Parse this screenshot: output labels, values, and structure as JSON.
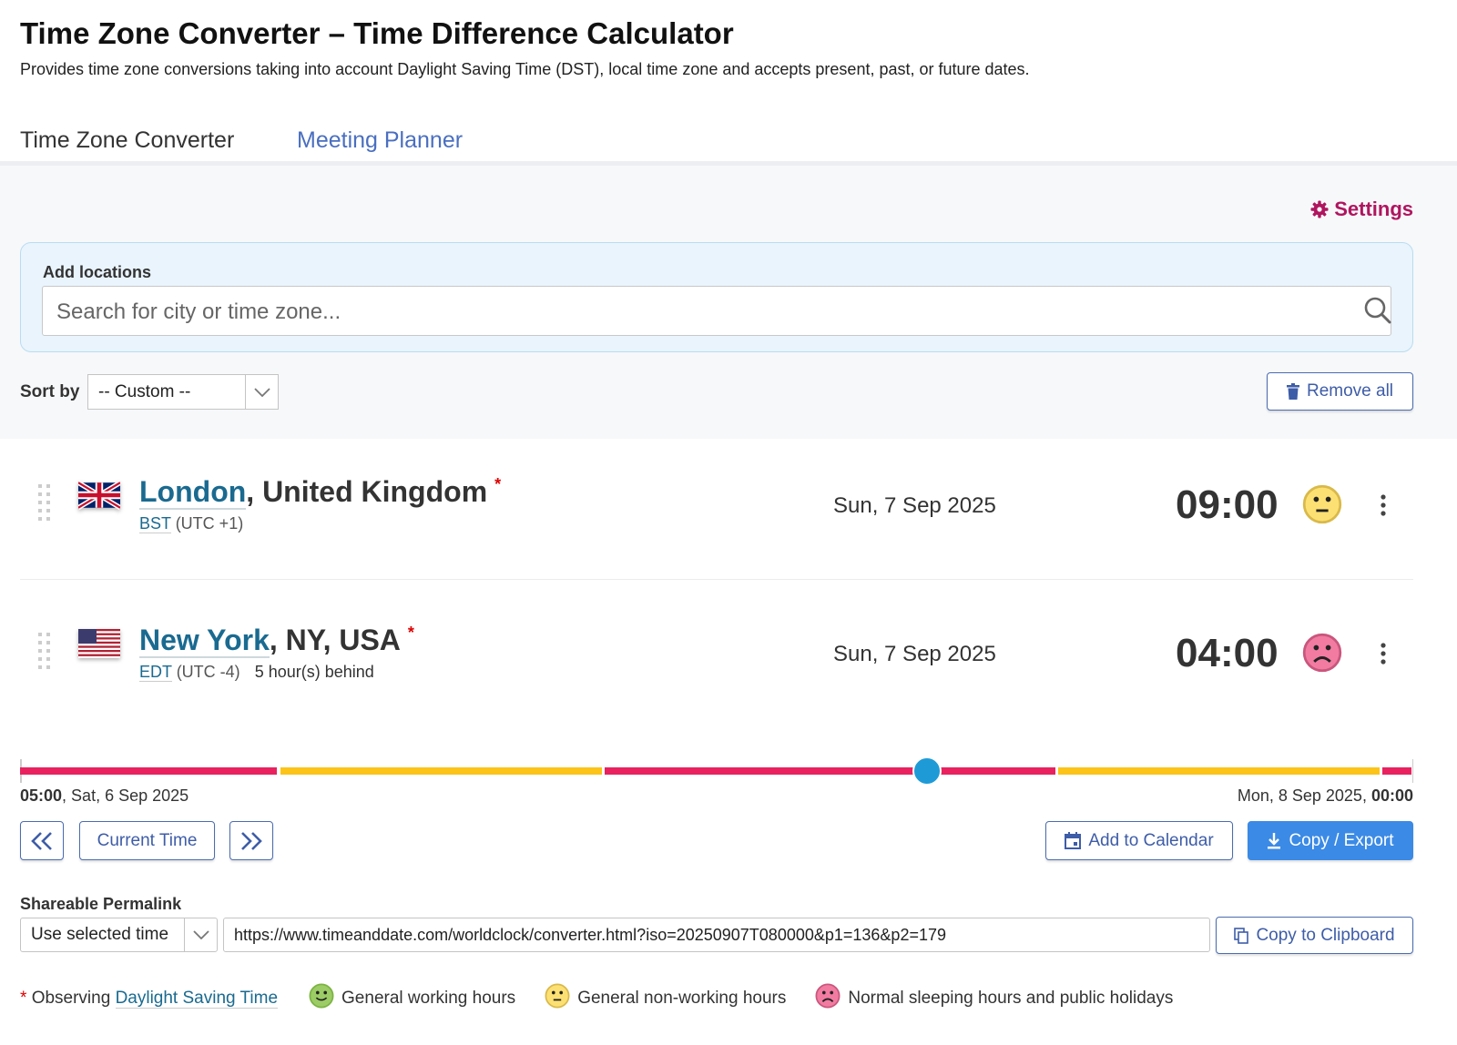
{
  "header": {
    "title": "Time Zone Converter – Time Difference Calculator",
    "subtitle": "Provides time zone conversions taking into account Daylight Saving Time (DST), local time zone and accepts present, past, or future dates."
  },
  "tabs": [
    {
      "label": "Time Zone Converter",
      "active": true
    },
    {
      "label": "Meeting Planner",
      "active": false
    }
  ],
  "settings_label": "Settings",
  "add_locations": {
    "label": "Add locations",
    "placeholder": "Search for city or time zone..."
  },
  "sort": {
    "label": "Sort by",
    "value": "-- Custom --"
  },
  "remove_all_label": "Remove all",
  "locations": [
    {
      "city": "London",
      "region": ", United Kingdom",
      "star": "*",
      "tz": "BST",
      "offset": " (UTC +1)",
      "diff": "",
      "date": "Sun, 7 Sep 2025",
      "time": "09:00",
      "status": "non-working",
      "flag": "uk-flag"
    },
    {
      "city": "New York",
      "region": ", NY, USA",
      "star": "*",
      "tz": "EDT",
      "offset": " (UTC -4)",
      "diff": "5 hour(s) behind",
      "date": "Sun, 7 Sep 2025",
      "time": "04:00",
      "status": "sleeping",
      "flag": "us-flag"
    }
  ],
  "timeline": {
    "start_time": "05:00",
    "start_date": ", Sat, 6 Sep 2025",
    "end_date": "Mon, 8 Sep 2025, ",
    "end_time": "00:00",
    "total_hours": 43,
    "selected_hour": 28,
    "segments": [
      {
        "from": 0,
        "to": 8,
        "type": "sleeping"
      },
      {
        "from": 8,
        "to": 18,
        "type": "non-working"
      },
      {
        "from": 18,
        "to": 32,
        "type": "sleeping"
      },
      {
        "from": 32,
        "to": 42,
        "type": "non-working"
      },
      {
        "from": 42,
        "to": 43,
        "type": "sleeping"
      }
    ]
  },
  "buttons": {
    "current_time": "Current Time",
    "add_to_calendar": "Add to Calendar",
    "copy_export": "Copy / Export",
    "copy_clipboard": "Copy to Clipboard"
  },
  "permalink": {
    "label": "Shareable Permalink",
    "mode": "Use selected time",
    "url": "https://www.timeanddate.com/worldclock/converter.html?iso=20250907T080000&p1=136&p2=179"
  },
  "legend": {
    "star": "*",
    "observing": "Observing ",
    "dst_link": "Daylight Saving Time",
    "working": "General working hours",
    "nonworking": "General non-working hours",
    "sleeping": "Normal sleeping hours and public holidays"
  },
  "colors": {
    "accent": "#3b82d9",
    "settings": "#b0155f",
    "link": "#1a6a90",
    "sleeping": "#e8225f",
    "nonworking": "#fcc419",
    "thumb": "#1e9bd7",
    "primary_button": "#3b8ae6"
  }
}
